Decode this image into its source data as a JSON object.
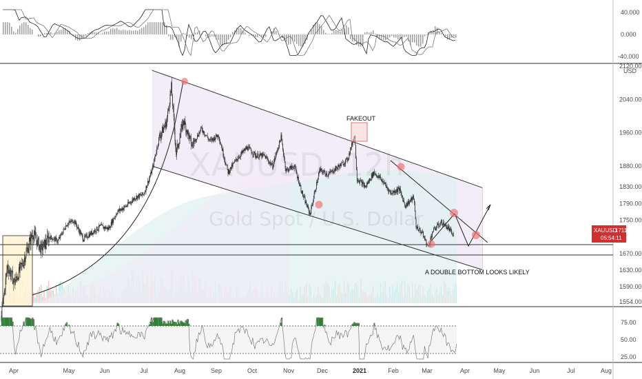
{
  "chart_data": {
    "type": "line",
    "symbol": "XAUUSD",
    "watermark_symbol": "XAUUSD, 12h",
    "watermark_name": "Gold Spot / U.S. Dollar",
    "currency": "USD",
    "last_price": "1711.543",
    "countdown": "05:54:11",
    "price_axis": {
      "min": 1554,
      "max": 2120,
      "ticks": [
        "2120.000",
        "2040.000",
        "1960.000",
        "1880.000",
        "1830.000",
        "1790.000",
        "1750.000",
        "1710.000",
        "1670.000",
        "1630.000",
        "1590.000",
        "1554.000"
      ]
    },
    "x_axis": {
      "labels": [
        "Apr",
        "May",
        "Jun",
        "Jul",
        "Aug",
        "Sep",
        "Oct",
        "Nov",
        "Dec",
        "2021",
        "Feb",
        "Mar",
        "Apr",
        "May",
        "Jun",
        "Jul",
        "Aug"
      ]
    },
    "macd_panel": {
      "ticks": [
        "40.000",
        "0.000",
        "-40.000"
      ],
      "range": [
        -50,
        50
      ]
    },
    "rsi_panel": {
      "ticks": [
        "75.00",
        "50.00",
        "25.00"
      ],
      "range": [
        15,
        85
      ],
      "upper": 70,
      "lower": 30
    },
    "price_series": [
      [
        "Mar 19",
        1520
      ],
      [
        "Mar 24",
        1640
      ],
      [
        "Mar 30",
        1600
      ],
      [
        "Apr 06",
        1650
      ],
      [
        "Apr 14",
        1720
      ],
      [
        "Apr 21",
        1680
      ],
      [
        "Apr 28",
        1710
      ],
      [
        "May 05",
        1700
      ],
      [
        "May 12",
        1740
      ],
      [
        "May 18",
        1750
      ],
      [
        "May 26",
        1705
      ],
      [
        "Jun 02",
        1720
      ],
      [
        "Jun 09",
        1735
      ],
      [
        "Jun 16",
        1730
      ],
      [
        "Jun 23",
        1770
      ],
      [
        "Jul 01",
        1785
      ],
      [
        "Jul 08",
        1805
      ],
      [
        "Jul 15",
        1812
      ],
      [
        "Jul 22",
        1870
      ],
      [
        "Jul 28",
        1950
      ],
      [
        "Aug 03",
        1985
      ],
      [
        "Aug 07",
        2070
      ],
      [
        "Aug 11",
        1910
      ],
      [
        "Aug 17",
        1990
      ],
      [
        "Aug 24",
        1930
      ],
      [
        "Sep 01",
        1970
      ],
      [
        "Sep 08",
        1940
      ],
      [
        "Sep 15",
        1955
      ],
      [
        "Sep 23",
        1865
      ],
      [
        "Oct 01",
        1900
      ],
      [
        "Oct 09",
        1925
      ],
      [
        "Oct 16",
        1905
      ],
      [
        "Oct 23",
        1905
      ],
      [
        "Oct 30",
        1880
      ],
      [
        "Nov 06",
        1950
      ],
      [
        "Nov 10",
        1870
      ],
      [
        "Nov 17",
        1880
      ],
      [
        "Nov 24",
        1810
      ],
      [
        "Nov 30",
        1765
      ],
      [
        "Dec 08",
        1870
      ],
      [
        "Dec 15",
        1860
      ],
      [
        "Dec 22",
        1875
      ],
      [
        "Dec 31",
        1895
      ],
      [
        "Jan 06",
        1955
      ],
      [
        "Jan 08",
        1850
      ],
      [
        "Jan 15",
        1830
      ],
      [
        "Jan 22",
        1865
      ],
      [
        "Jan 29",
        1845
      ],
      [
        "Feb 05",
        1815
      ],
      [
        "Feb 12",
        1825
      ],
      [
        "Feb 17",
        1785
      ],
      [
        "Feb 24",
        1805
      ],
      [
        "Feb 26",
        1735
      ],
      [
        "Mar 03",
        1720
      ],
      [
        "Mar 08",
        1685
      ],
      [
        "Mar 12",
        1725
      ],
      [
        "Mar 19",
        1745
      ],
      [
        "Mar 25",
        1730
      ],
      [
        "Mar 29",
        1712
      ]
    ],
    "channel": {
      "upper": [
        [
          "Jul 22",
          2110
        ],
        [
          "Apr 22",
          1828
        ]
      ],
      "lower": [
        [
          "Jul 22",
          1880
        ],
        [
          "Apr 22",
          1631
        ]
      ]
    },
    "horizontal_levels": [
      1676,
      1652
    ],
    "annotations": [
      "FAKEOUT",
      "A DOUBLE BOTTOM LOOKS LIKELY"
    ],
    "colors": {
      "up": "#26a69a",
      "down": "#ef5350",
      "marker": "#f06f6f",
      "price_tag": "#d32f2f",
      "rsi_line": "#7a7a7a",
      "rsi_over": "#2e7d32",
      "channel_fill": "#ede7f6"
    }
  },
  "price_tag": {
    "symbol": "XAUUSD",
    "value": "1711.543",
    "timer": "05:54:11"
  },
  "annotations": {
    "fakeout": "FAKEOUT",
    "double_bottom": "A DOUBLE BOTTOM LOOKS LIKELY"
  },
  "watermark": {
    "symbol": "XAUUSD, 12h",
    "name": "Gold Spot / U.S. Dollar"
  }
}
